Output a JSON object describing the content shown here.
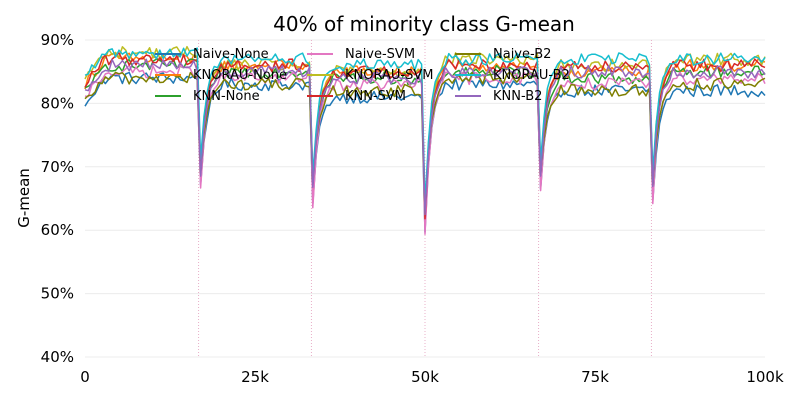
{
  "chart_data": {
    "type": "line",
    "title": "40% of minority class G-mean",
    "xlabel": "",
    "ylabel": "G-mean",
    "xlim": [
      0,
      100000
    ],
    "ylim": [
      0.4,
      0.9
    ],
    "grid": true,
    "legend_position": "top",
    "x_tick_values": [
      0,
      25000,
      50000,
      75000,
      100000
    ],
    "x_tick_labels": [
      "0",
      "25k",
      "50k",
      "75k",
      "100k"
    ],
    "y_tick_values": [
      0.4,
      0.5,
      0.6,
      0.7,
      0.8,
      0.9
    ],
    "y_tick_labels": [
      "40%",
      "50%",
      "60%",
      "70%",
      "80%",
      "90%"
    ],
    "drift_points": [
      16700,
      33300,
      50000,
      66700,
      83300
    ],
    "segment_starts": [
      0,
      16700,
      33300,
      50000,
      66700,
      83300
    ],
    "series": [
      {
        "name": "Naive-None",
        "color": "#1f77b4",
        "min": 0.6,
        "segments": [
          0.84,
          0.83,
          0.81,
          0.83,
          0.82,
          0.82
        ]
      },
      {
        "name": "KNORAU-None",
        "color": "#ff7f0e",
        "min": 0.62,
        "segments": [
          0.87,
          0.86,
          0.85,
          0.86,
          0.85,
          0.86
        ]
      },
      {
        "name": "KNN-None",
        "color": "#2ca02c",
        "min": 0.63,
        "segments": [
          0.86,
          0.85,
          0.84,
          0.85,
          0.84,
          0.85
        ]
      },
      {
        "name": "Naive-SVM",
        "color": "#e377c2",
        "min": 0.59,
        "segments": [
          0.85,
          0.84,
          0.83,
          0.84,
          0.83,
          0.84
        ]
      },
      {
        "name": "KNORAU-SVM",
        "color": "#bcbd22",
        "min": 0.63,
        "segments": [
          0.88,
          0.86,
          0.85,
          0.87,
          0.86,
          0.87
        ]
      },
      {
        "name": "KNN-SVM",
        "color": "#d62728",
        "min": 0.62,
        "segments": [
          0.87,
          0.86,
          0.85,
          0.86,
          0.86,
          0.86
        ]
      },
      {
        "name": "Naive-B2",
        "color": "#7f7f00",
        "min": 0.63,
        "segments": [
          0.84,
          0.83,
          0.82,
          0.84,
          0.82,
          0.83
        ]
      },
      {
        "name": "KNORAU-B2",
        "color": "#17becf",
        "min": 0.64,
        "segments": [
          0.88,
          0.87,
          0.86,
          0.87,
          0.87,
          0.87
        ]
      },
      {
        "name": "KNN-B2",
        "color": "#9467bd",
        "min": 0.62,
        "segments": [
          0.86,
          0.85,
          0.84,
          0.85,
          0.85,
          0.85
        ]
      }
    ]
  }
}
